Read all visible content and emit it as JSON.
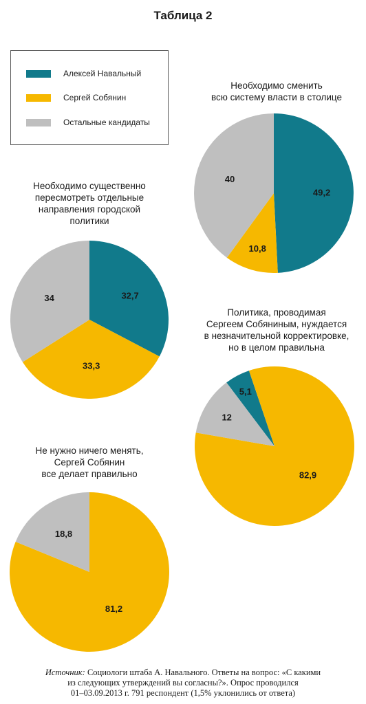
{
  "title": "Таблица 2",
  "legend": [
    {
      "label": "Алексей Навальный",
      "color": "#117a8b"
    },
    {
      "label": "Сергей Собянин",
      "color": "#f6b800"
    },
    {
      "label": "Остальные кандидаты",
      "color": "#bfbfbf"
    }
  ],
  "chart_data": [
    {
      "type": "pie",
      "title": [
        "Необходимо сменить",
        "всю систему власти в столице"
      ],
      "slices": [
        {
          "name": "Алексей Навальный",
          "value": 49.2,
          "label": "49,2",
          "color": "#117a8b"
        },
        {
          "name": "Сергей Собянин",
          "value": 10.8,
          "label": "10,8",
          "color": "#f6b800"
        },
        {
          "name": "Остальные кандидаты",
          "value": 40,
          "label": "40",
          "color": "#bfbfbf"
        }
      ]
    },
    {
      "type": "pie",
      "title": [
        "Необходимо существенно",
        "пересмотреть отдельные",
        "направления городской",
        "политики"
      ],
      "slices": [
        {
          "name": "Алексей Навальный",
          "value": 32.7,
          "label": "32,7",
          "color": "#117a8b"
        },
        {
          "name": "Сергей Собянин",
          "value": 33.3,
          "label": "33,3",
          "color": "#f6b800"
        },
        {
          "name": "Остальные кандидаты",
          "value": 34,
          "label": "34",
          "color": "#bfbfbf"
        }
      ]
    },
    {
      "type": "pie",
      "title": [
        "Политика, проводимая",
        "Сергеем Собяниным, нуждается",
        "в незначительной корректировке,",
        "но в целом правильна"
      ],
      "slices": [
        {
          "name": "Алексей Навальный",
          "value": 5.1,
          "label": "5,1",
          "color": "#117a8b"
        },
        {
          "name": "Сергей Собянин",
          "value": 82.9,
          "label": "82,9",
          "color": "#f6b800"
        },
        {
          "name": "Остальные кандидаты",
          "value": 12,
          "label": "12",
          "color": "#bfbfbf"
        }
      ]
    },
    {
      "type": "pie",
      "title": [
        "Не нужно ничего менять,",
        "Сергей Собянин",
        "все делает правильно"
      ],
      "slices": [
        {
          "name": "Сергей Собянин",
          "value": 81.2,
          "label": "81,2",
          "color": "#f6b800"
        },
        {
          "name": "Остальные кандидаты",
          "value": 18.8,
          "label": "18,8",
          "color": "#bfbfbf"
        }
      ]
    }
  ],
  "footnote": {
    "source_label": "Источник:",
    "lines": [
      " Социологи штаба А. Навального. Ответы на вопрос: «С какими",
      "из следующих утверждений вы согласны?». Опрос проводился",
      "01–03.09.2013 г. 791 респондент (1,5% уклонились от ответа)"
    ]
  }
}
